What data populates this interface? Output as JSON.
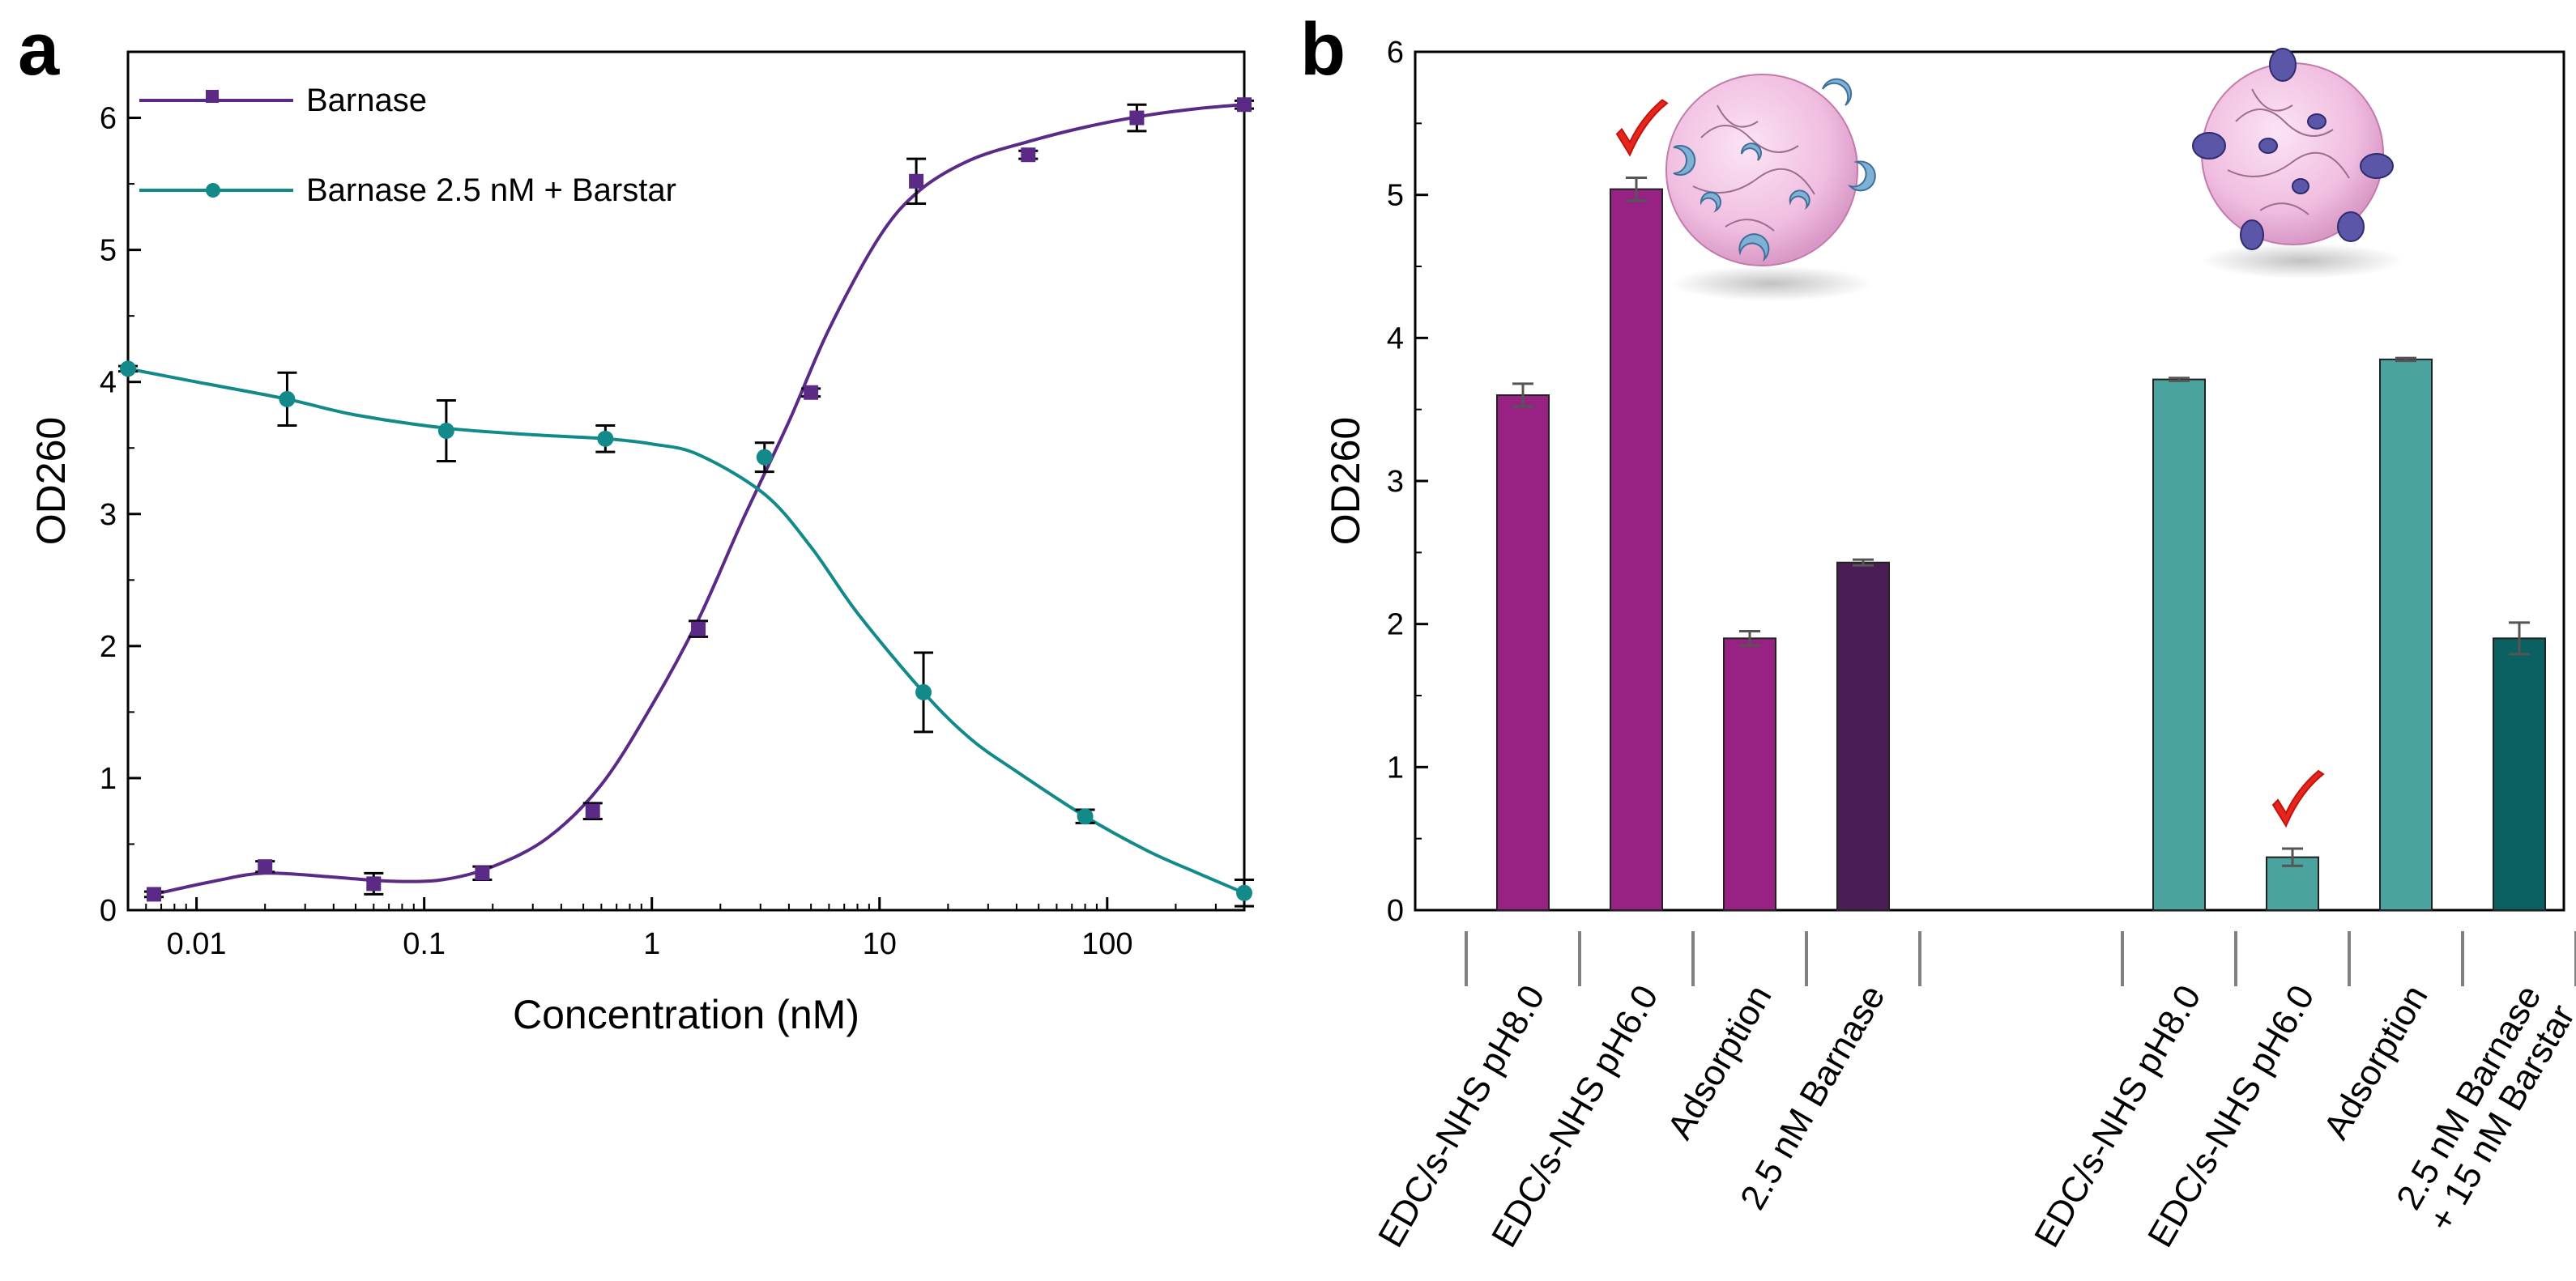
{
  "figure": {
    "panel_a_label": "a",
    "panel_b_label": "b"
  },
  "chart_data": [
    {
      "type": "line",
      "panel": "a",
      "title": "",
      "xlabel": "Concentration (nM)",
      "ylabel": "OD260",
      "xscale": "log",
      "xlim": [
        0.005,
        400
      ],
      "ylim": [
        0,
        6.5
      ],
      "xticks": [
        0.01,
        0.1,
        1,
        10,
        100
      ],
      "xtick_labels": [
        "0.01",
        "0.1",
        "1",
        "10",
        "100"
      ],
      "yticks": [
        0,
        1,
        2,
        3,
        4,
        5,
        6
      ],
      "ytick_labels": [
        "0",
        "1",
        "2",
        "3",
        "4",
        "5",
        "6"
      ],
      "legend_position": "top-left",
      "series": [
        {
          "name": "Barnase",
          "color": "#5b2a86",
          "marker": "square",
          "x": [
            0.0065,
            0.02,
            0.06,
            0.18,
            0.55,
            1.6,
            5,
            14.5,
            45,
            135,
            400
          ],
          "y": [
            0.12,
            0.33,
            0.2,
            0.28,
            0.75,
            2.13,
            3.92,
            5.52,
            5.72,
            6.0,
            6.1
          ],
          "err": [
            0.02,
            0.04,
            0.08,
            0.05,
            0.06,
            0.06,
            0.03,
            0.17,
            0.03,
            0.1,
            0.03
          ],
          "curve_x": [
            0.0065,
            0.012,
            0.02,
            0.04,
            0.07,
            0.12,
            0.2,
            0.35,
            0.6,
            1.0,
            1.6,
            2.5,
            4,
            6,
            10,
            15,
            25,
            45,
            80,
            150,
            250,
            400
          ],
          "curve_y": [
            0.12,
            0.22,
            0.28,
            0.25,
            0.22,
            0.23,
            0.33,
            0.55,
            0.95,
            1.55,
            2.2,
            2.95,
            3.7,
            4.4,
            5.1,
            5.45,
            5.68,
            5.82,
            5.93,
            6.02,
            6.07,
            6.1
          ]
        },
        {
          "name": "Barnase 2.5 nM + Barstar",
          "color": "#138a8a",
          "marker": "circle",
          "x": [
            0.005,
            0.025,
            0.125,
            0.625,
            3.125,
            15.6,
            80,
            400
          ],
          "y": [
            4.1,
            3.87,
            3.63,
            3.57,
            3.43,
            1.65,
            0.71,
            0.13
          ],
          "err": [
            0.02,
            0.2,
            0.23,
            0.1,
            0.11,
            0.3,
            0.05,
            0.1
          ],
          "curve_x": [
            0.005,
            0.01,
            0.025,
            0.05,
            0.125,
            0.3,
            0.625,
            1.0,
            1.6,
            3.125,
            5,
            8,
            15.6,
            25,
            40,
            80,
            150,
            250,
            400
          ],
          "curve_y": [
            4.1,
            4.0,
            3.87,
            3.75,
            3.65,
            3.6,
            3.57,
            3.53,
            3.45,
            3.15,
            2.75,
            2.25,
            1.65,
            1.3,
            1.05,
            0.71,
            0.45,
            0.28,
            0.13
          ]
        }
      ]
    },
    {
      "type": "bar",
      "panel": "b",
      "title": "",
      "xlabel": "",
      "ylabel": "OD260",
      "ylim": [
        0,
        6
      ],
      "yticks": [
        0,
        1,
        2,
        3,
        4,
        5,
        6
      ],
      "ytick_labels": [
        "0",
        "1",
        "2",
        "3",
        "4",
        "5",
        "6"
      ],
      "groups": [
        {
          "bars": [
            {
              "label": "EDC/s-NHS pH8.0",
              "value": 3.6,
              "err": 0.08,
              "color": "#972283",
              "check": false
            },
            {
              "label": "EDC/s-NHS pH6.0",
              "value": 5.04,
              "err": 0.08,
              "color": "#972283",
              "check": true
            },
            {
              "label": "Adsorption",
              "value": 1.9,
              "err": 0.05,
              "color": "#972283",
              "check": false
            },
            {
              "label": "2.5 nM Barnase",
              "value": 2.43,
              "err": 0.02,
              "color": "#4a1e54",
              "check": false
            }
          ]
        },
        {
          "bars": [
            {
              "label": "EDC/s-NHS pH8.0",
              "value": 3.71,
              "err": 0.01,
              "color": "#4aa39e",
              "check": false
            },
            {
              "label": "EDC/s-NHS pH6.0",
              "value": 0.37,
              "err": 0.06,
              "color": "#4aa39e",
              "check": true
            },
            {
              "label": "Adsorption",
              "value": 3.85,
              "err": 0.01,
              "color": "#4aa39e",
              "check": false
            },
            {
              "label": "2.5 nM Barnase\n+ 15 nM Barstar",
              "value": 1.9,
              "err": 0.11,
              "color": "#0b6161",
              "check": false
            }
          ]
        }
      ]
    }
  ]
}
